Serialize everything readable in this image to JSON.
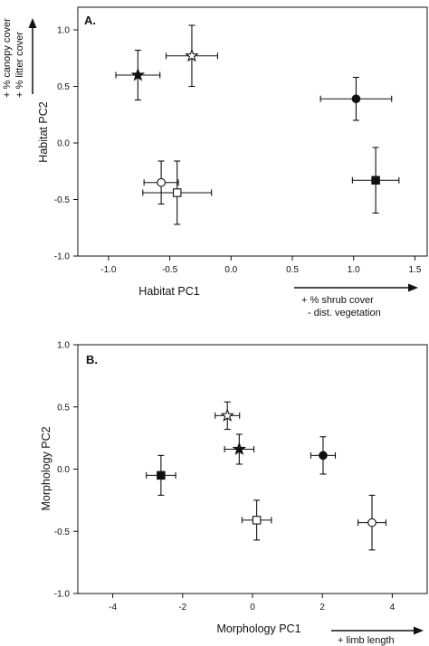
{
  "chart_data": [
    {
      "type": "scatter",
      "panel_label": "A.",
      "xlabel": "Habitat PC1",
      "ylabel": "Habitat PC2",
      "x_annotation": [
        "+ % shrub cover",
        "- dist. vegetation"
      ],
      "y_annotation": [
        "+ % canopy cover",
        "+ % litter cover"
      ],
      "xlim": [
        -1.25,
        1.6
      ],
      "ylim": [
        -1.0,
        1.2
      ],
      "xticks": [
        "-1.0",
        "-0.5",
        "0.0",
        "0.5",
        "1.0",
        "1.5"
      ],
      "yticks": [
        "-1.0",
        "-0.5",
        "0.0",
        "0.5",
        "1.0"
      ],
      "points": [
        {
          "marker": "star-filled",
          "x": -0.76,
          "y": 0.6,
          "xerr": 0.18,
          "yerr": 0.22
        },
        {
          "marker": "star-open",
          "x": -0.32,
          "y": 0.77,
          "xerr": 0.21,
          "yerr": 0.27
        },
        {
          "marker": "circle-filled",
          "x": 1.02,
          "y": 0.39,
          "xerr": 0.29,
          "yerr": 0.19
        },
        {
          "marker": "square-filled",
          "x": 1.18,
          "y": -0.33,
          "xerr": 0.19,
          "yerr": 0.29
        },
        {
          "marker": "circle-open",
          "x": -0.57,
          "y": -0.35,
          "xerr": 0.14,
          "yerr": 0.19
        },
        {
          "marker": "square-open",
          "x": -0.44,
          "y": -0.44,
          "xerr": 0.28,
          "yerr": 0.28
        }
      ]
    },
    {
      "type": "scatter",
      "panel_label": "B.",
      "xlabel": "Morphology PC1",
      "ylabel": "Morphology PC2",
      "x_annotation": [
        "+ limb length"
      ],
      "y_annotation": [],
      "xlim": [
        -5,
        5
      ],
      "ylim": [
        -1.0,
        1.0
      ],
      "xticks": [
        "-4",
        "-2",
        "0",
        "2",
        "4"
      ],
      "yticks": [
        "-1.0",
        "-0.5",
        "0.0",
        "0.5",
        "1.0"
      ],
      "points": [
        {
          "marker": "star-open",
          "x": -0.72,
          "y": 0.43,
          "xerr": 0.35,
          "yerr": 0.11
        },
        {
          "marker": "star-filled",
          "x": -0.38,
          "y": 0.16,
          "xerr": 0.42,
          "yerr": 0.12
        },
        {
          "marker": "circle-filled",
          "x": 2.02,
          "y": 0.11,
          "xerr": 0.35,
          "yerr": 0.15
        },
        {
          "marker": "square-filled",
          "x": -2.62,
          "y": -0.05,
          "xerr": 0.42,
          "yerr": 0.16
        },
        {
          "marker": "square-open",
          "x": 0.12,
          "y": -0.41,
          "xerr": 0.42,
          "yerr": 0.16
        },
        {
          "marker": "circle-open",
          "x": 3.42,
          "y": -0.43,
          "xerr": 0.4,
          "yerr": 0.22
        }
      ]
    }
  ]
}
